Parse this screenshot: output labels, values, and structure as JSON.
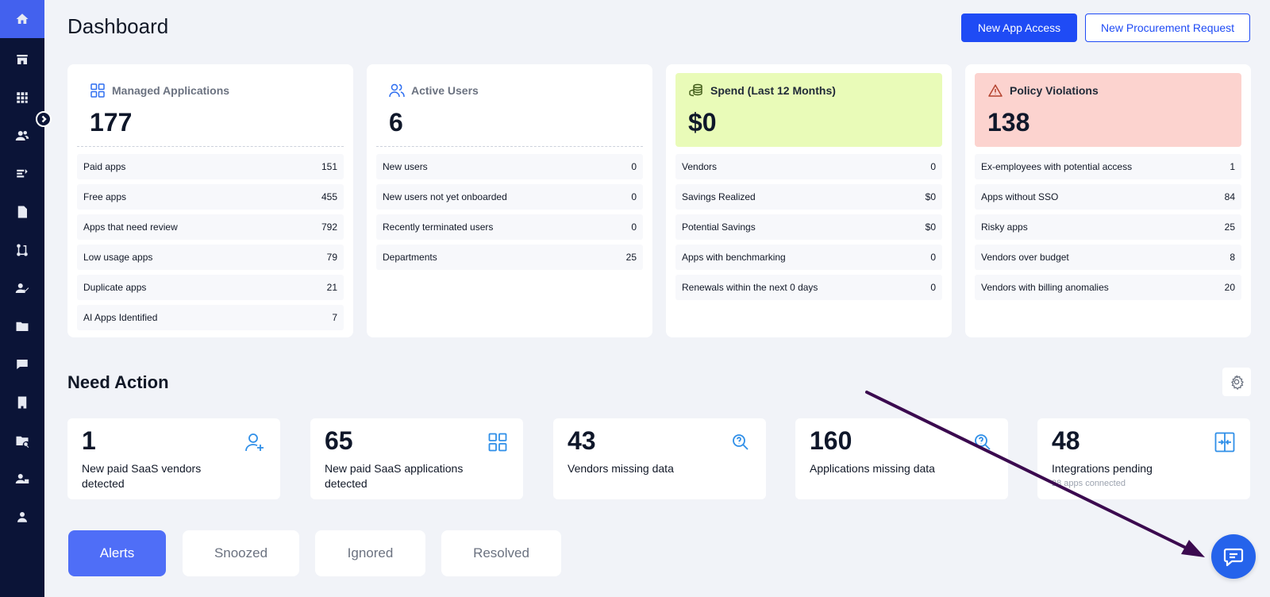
{
  "header": {
    "title": "Dashboard",
    "new_app_access": "New App Access",
    "new_procurement": "New Procurement Request"
  },
  "cards": [
    {
      "title": "Managed Applications",
      "value": "177",
      "rows": [
        {
          "label": "Paid apps",
          "value": "151"
        },
        {
          "label": "Free apps",
          "value": "455"
        },
        {
          "label": "Apps that need review",
          "value": "792"
        },
        {
          "label": "Low usage apps",
          "value": "79"
        },
        {
          "label": "Duplicate apps",
          "value": "21"
        },
        {
          "label": "AI Apps Identified",
          "value": "7"
        }
      ]
    },
    {
      "title": "Active Users",
      "value": "6",
      "rows": [
        {
          "label": "New users",
          "value": "0"
        },
        {
          "label": "New users not yet onboarded",
          "value": "0"
        },
        {
          "label": "Recently terminated users",
          "value": "0"
        },
        {
          "label": "Departments",
          "value": "25"
        }
      ]
    },
    {
      "title": "Spend (Last 12 Months)",
      "value": "$0",
      "rows": [
        {
          "label": "Vendors",
          "value": "0"
        },
        {
          "label": "Savings Realized",
          "value": "$0"
        },
        {
          "label": "Potential Savings",
          "value": "$0"
        },
        {
          "label": "Apps with benchmarking",
          "value": "0"
        },
        {
          "label": "Renewals within the next 0 days",
          "value": "0"
        }
      ]
    },
    {
      "title": "Policy Violations",
      "value": "138",
      "rows": [
        {
          "label": "Ex-employees with potential access",
          "value": "1"
        },
        {
          "label": "Apps without SSO",
          "value": "84"
        },
        {
          "label": "Risky apps",
          "value": "25"
        },
        {
          "label": "Vendors over budget",
          "value": "8"
        },
        {
          "label": "Vendors with billing anomalies",
          "value": "20"
        }
      ]
    }
  ],
  "need_action": {
    "title": "Need Action",
    "items": [
      {
        "value": "1",
        "label": "New paid SaaS vendors detected",
        "icon": "user-plus-icon"
      },
      {
        "value": "65",
        "label": "New paid SaaS applications detected",
        "icon": "apps-grid-icon"
      },
      {
        "value": "43",
        "label": "Vendors missing data",
        "icon": "search-question-icon"
      },
      {
        "value": "160",
        "label": "Applications missing data",
        "icon": "search-question-icon"
      },
      {
        "value": "48",
        "label": "Integrations pending",
        "sub": "28 apps connected",
        "icon": "integration-icon"
      }
    ]
  },
  "tabs": [
    "Alerts",
    "Snoozed",
    "Ignored",
    "Resolved"
  ],
  "colors": {
    "sidebar": "#0b1437",
    "accent": "#1f4bf5",
    "spend_bg": "#e9fbb8",
    "violations_bg": "#fcd3cf",
    "arrow": "#3b0a4f"
  }
}
